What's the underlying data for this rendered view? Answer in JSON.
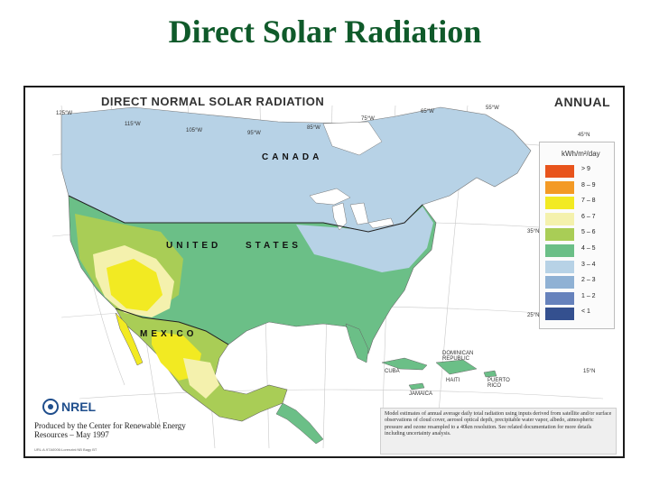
{
  "slide": {
    "title": "Direct Solar Radiation"
  },
  "map": {
    "heading": "DIRECT NORMAL SOLAR RADIATION",
    "period": "ANNUAL",
    "countries": {
      "canada": "CANADA",
      "united": "UNITED",
      "states": "STATES",
      "mexico": "MEXICO"
    },
    "places": {
      "cuba": "CUBA",
      "dominican": "DOMINICAN REPUBLIC",
      "haiti": "HAITI",
      "puerto_rico": "PUERTO RICO",
      "jamaica": "JAMAICA"
    },
    "coords": {
      "lon_125": "125°W",
      "lon_115": "115°W",
      "lon_105": "105°W",
      "lon_95": "95°W",
      "lon_85": "85°W",
      "lon_75": "75°W",
      "lon_65": "65°W",
      "lon_55": "55°W",
      "lat_45": "45°N",
      "lat_35": "35°N",
      "lat_25": "25°N",
      "lat_15": "15°N"
    },
    "legend": {
      "unit": "kWh/m²/day",
      "classes": [
        {
          "label": "> 9",
          "color": "#e8541c"
        },
        {
          "label": "8 – 9",
          "color": "#f39a25"
        },
        {
          "label": "7 – 8",
          "color": "#f2ea22"
        },
        {
          "label": "6 – 7",
          "color": "#f4f1ad"
        },
        {
          "label": "5 – 6",
          "color": "#a9cd56"
        },
        {
          "label": "4 – 5",
          "color": "#6bbf87"
        },
        {
          "label": "3 – 4",
          "color": "#b7d2e6"
        },
        {
          "label": "2 – 3",
          "color": "#8fb1d4"
        },
        {
          "label": "1 – 2",
          "color": "#6682bc"
        },
        {
          "label": "< 1",
          "color": "#34508f"
        }
      ]
    },
    "logo_text": "NREL",
    "credit": "Produced by the Center for Renewable Energy Resources – May 1997",
    "reference": "URL:A.97A0006:Lorenzini:NB Bagy BT",
    "note": "Model estimates of annual average daily total radiation using inputs derived from satellite and/or surface observations of cloud cover, aerosol optical depth, precipitable water vapor, albedo, atmospheric pressure and ozone resampled to a 40km resolution. See related documentation for more details including uncertainty analysis."
  }
}
